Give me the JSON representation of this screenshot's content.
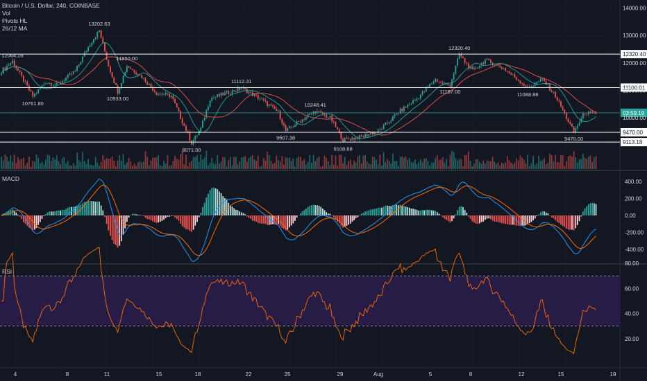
{
  "legend": {
    "symbol": "Bitcoin / U.S. Dollar, 240, COINBASE",
    "vol": "Vol",
    "pivots": "Pivots HL",
    "ma": "26/12 MA"
  },
  "colors": {
    "background": "#131722",
    "up": "#26a69a",
    "down": "#ef5350",
    "macd_line": "#2196f3",
    "signal_line": "#ff6d00",
    "rsi_line": "#ff6d00",
    "rsi_band": "#2a1d4a",
    "level_line": "#ffffff",
    "grid": "#2a2e39"
  },
  "price_axis": {
    "ticks": [
      "14000.00",
      "13000.00",
      "12000.00",
      "11000.00",
      "10000.00"
    ],
    "tick_values": [
      14000,
      13000,
      12000,
      11000,
      10000
    ],
    "level_labels": [
      "12320.40",
      "11100.01",
      "9470.00",
      "9113.18"
    ],
    "level_values": [
      12320.4,
      11100.01,
      9470.0,
      9113.18
    ],
    "current_label": "03:59:19",
    "current_value": 10180
  },
  "pivots": [
    {
      "label": "12064.26",
      "value": 12064.26,
      "kind": "high",
      "bar": 6
    },
    {
      "label": "10761.80",
      "value": 10761.8,
      "kind": "low",
      "bar": 17
    },
    {
      "label": "13202.63",
      "value": 13202.63,
      "kind": "high",
      "bar": 53
    },
    {
      "label": "11950.00",
      "value": 11950.0,
      "kind": "high",
      "bar": 68
    },
    {
      "label": "10933.00",
      "value": 10933.0,
      "kind": "low",
      "bar": 63
    },
    {
      "label": "9071.00",
      "value": 9071.0,
      "kind": "low",
      "bar": 103
    },
    {
      "label": "11112.31",
      "value": 11112.31,
      "kind": "high",
      "bar": 130
    },
    {
      "label": "10248.41",
      "value": 10248.41,
      "kind": "high",
      "bar": 170
    },
    {
      "label": "9507.38",
      "value": 9507.38,
      "kind": "low",
      "bar": 154
    },
    {
      "label": "9108.88",
      "value": 9108.88,
      "kind": "low",
      "bar": 185
    },
    {
      "label": "12320.40",
      "value": 12320.4,
      "kind": "high",
      "bar": 248
    },
    {
      "label": "11187.00",
      "value": 11187.0,
      "kind": "low",
      "bar": 243
    },
    {
      "label": "11088.88",
      "value": 11088.88,
      "kind": "low",
      "bar": 285
    },
    {
      "label": "9470.00",
      "value": 9470.0,
      "kind": "low",
      "bar": 310
    }
  ],
  "macd": {
    "title": "MACD",
    "ticks": [
      "400.00",
      "200.00",
      "0.00",
      "-200.00",
      "-400.00"
    ],
    "tick_values": [
      400,
      200,
      0,
      -200,
      -400
    ]
  },
  "rsi": {
    "title": "RSI",
    "ticks": [
      "80.00",
      "60.00",
      "40.00",
      "20.00"
    ],
    "tick_values": [
      80,
      60,
      40,
      20
    ],
    "band_upper": 70,
    "band_lower": 30
  },
  "time_axis": {
    "labels": [
      "4",
      "8",
      "11",
      "15",
      "18",
      "22",
      "25",
      "29",
      "Aug",
      "5",
      "8",
      "12",
      "15",
      "19"
    ]
  }
}
